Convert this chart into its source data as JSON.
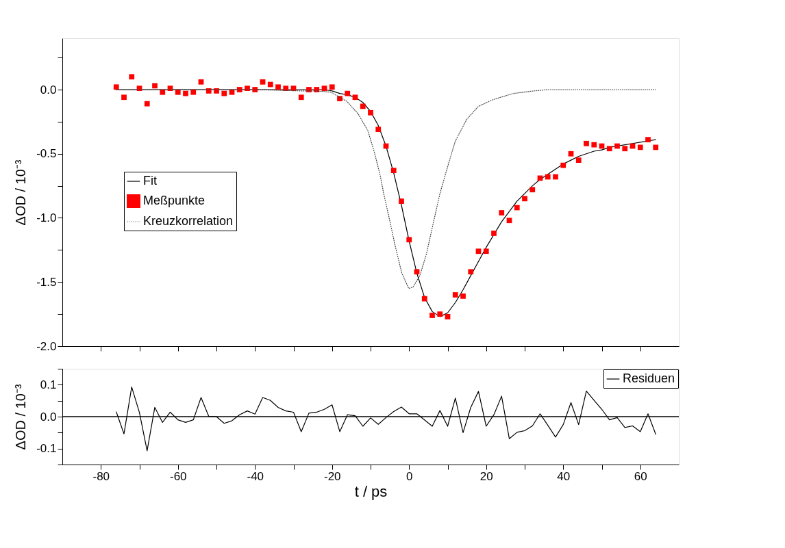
{
  "chart_data": [
    {
      "type": "scatter",
      "ylabel": "ΔOD / 10⁻³",
      "xlim": [
        -90,
        70
      ],
      "ylim": [
        -2.0,
        0.4
      ],
      "grid": false,
      "legend": "left",
      "tick_labels": "y",
      "xticks": [
        {
          "value": -80,
          "label": null
        },
        {
          "value": -70,
          "label": null
        },
        {
          "value": -60,
          "label": null
        },
        {
          "value": -50,
          "label": null
        },
        {
          "value": -40,
          "label": null
        },
        {
          "value": -30,
          "label": null
        },
        {
          "value": -20,
          "label": null
        },
        {
          "value": -10,
          "label": null
        },
        {
          "value": 0,
          "label": null
        },
        {
          "value": 10,
          "label": null
        },
        {
          "value": 20,
          "label": null
        },
        {
          "value": 30,
          "label": null
        },
        {
          "value": 40,
          "label": null
        },
        {
          "value": 50,
          "label": null
        },
        {
          "value": 60,
          "label": null
        }
      ],
      "yticks": [
        {
          "value": -2.0,
          "label": "-2.0"
        },
        {
          "value": -1.75,
          "label": null
        },
        {
          "value": -1.5,
          "label": "-1.5"
        },
        {
          "value": -1.25,
          "label": null
        },
        {
          "value": -1.0,
          "label": "-1.0"
        },
        {
          "value": -0.75,
          "label": null
        },
        {
          "value": -0.5,
          "label": "-0.5"
        },
        {
          "value": -0.25,
          "label": null
        },
        {
          "value": 0.0,
          "label": "0.0"
        },
        {
          "value": 0.25,
          "label": null
        }
      ],
      "x": [
        -76,
        -74,
        -72,
        -70,
        -68,
        -66,
        -64,
        -62,
        -60,
        -58,
        -56,
        -54,
        -52,
        -50,
        -48,
        -46,
        -44,
        -42,
        -40,
        -38,
        -36,
        -34,
        -32,
        -30,
        -28,
        -26,
        -24,
        -22,
        -20,
        -18,
        -16,
        -14,
        -12,
        -10,
        -8,
        -6,
        -4,
        -2,
        0,
        2,
        4,
        6,
        8,
        10,
        12,
        14,
        16,
        18,
        20,
        22,
        24,
        26,
        28,
        30,
        32,
        34,
        36,
        38,
        40,
        42,
        44,
        46,
        48,
        50,
        52,
        54,
        56,
        58,
        60,
        62,
        64
      ],
      "series": [
        {
          "name": "Fit",
          "type": "line",
          "color": "#000000",
          "line_style": "solid",
          "marker": "none",
          "values": [
            0,
            0,
            0,
            0,
            0,
            0,
            0,
            0,
            0,
            0,
            0,
            0,
            0,
            0,
            0,
            0,
            0,
            0,
            0,
            0,
            0,
            0,
            0,
            0,
            0,
            0,
            0,
            0,
            -0.01,
            -0.03,
            -0.04,
            -0.06,
            -0.1,
            -0.17,
            -0.28,
            -0.44,
            -0.65,
            -0.9,
            -1.18,
            -1.43,
            -1.62,
            -1.73,
            -1.77,
            -1.74,
            -1.66,
            -1.56,
            -1.45,
            -1.34,
            -1.23,
            -1.13,
            -1.03,
            -0.95,
            -0.87,
            -0.81,
            -0.75,
            -0.7,
            -0.66,
            -0.62,
            -0.58,
            -0.55,
            -0.52,
            -0.5,
            -0.48,
            -0.47,
            -0.45,
            -0.44,
            -0.43,
            -0.42,
            -0.41,
            -0.4,
            -0.39
          ]
        },
        {
          "name": "Meßpunkte",
          "color": "#ff0000",
          "marker": "square",
          "values": [
            0.02,
            -0.06,
            0.1,
            0.01,
            -0.11,
            0.03,
            -0.02,
            0.01,
            -0.02,
            -0.03,
            -0.02,
            0.06,
            -0.01,
            -0.01,
            -0.03,
            -0.02,
            0.0,
            0.01,
            0.0,
            0.06,
            0.04,
            0.02,
            0.01,
            0.01,
            -0.06,
            0.0,
            0.0,
            0.01,
            0.02,
            -0.07,
            -0.03,
            -0.06,
            -0.13,
            -0.18,
            -0.31,
            -0.44,
            -0.63,
            -0.87,
            -1.17,
            -1.42,
            -1.63,
            -1.76,
            -1.75,
            -1.77,
            -1.6,
            -1.61,
            -1.42,
            -1.26,
            -1.26,
            -1.12,
            -0.96,
            -1.02,
            -0.92,
            -0.85,
            -0.78,
            -0.69,
            -0.68,
            -0.68,
            -0.59,
            -0.5,
            -0.55,
            -0.42,
            -0.43,
            -0.44,
            -0.46,
            -0.44,
            -0.46,
            -0.44,
            -0.45,
            -0.39,
            -0.45
          ]
        },
        {
          "name": "Kreuzkorrelation",
          "type": "line",
          "color": "#444444",
          "line_style": "dotted",
          "marker": "none",
          "x": [
            -76,
            -40,
            -28,
            -24,
            -20.3,
            -16.2,
            -13.2,
            -10.7,
            -9.0,
            -7.5,
            -6.6,
            -5.4,
            -3.6,
            -1.9,
            -0.1,
            1.0,
            2.8,
            4.5,
            6.2,
            8.0,
            10.2,
            12.0,
            15.0,
            18.0,
            21.6,
            27.0,
            32.4,
            36.0,
            64
          ],
          "values": [
            0,
            0,
            -0.01,
            -0.01,
            -0.02,
            -0.09,
            -0.19,
            -0.32,
            -0.49,
            -0.67,
            -0.81,
            -0.97,
            -1.22,
            -1.43,
            -1.55,
            -1.54,
            -1.45,
            -1.28,
            -1.05,
            -0.81,
            -0.58,
            -0.4,
            -0.23,
            -0.13,
            -0.08,
            -0.03,
            -0.01,
            0,
            0
          ]
        }
      ]
    },
    {
      "type": "line",
      "xlabel": "t / ps",
      "ylabel": "ΔOD / 10⁻³",
      "xlim": [
        -90,
        70
      ],
      "ylim": [
        -0.15,
        0.15
      ],
      "grid": false,
      "legend": "top right",
      "xticks": [
        {
          "value": -80,
          "label": "-80"
        },
        {
          "value": -70,
          "label": null
        },
        {
          "value": -60,
          "label": "-60"
        },
        {
          "value": -50,
          "label": null
        },
        {
          "value": -40,
          "label": "-40"
        },
        {
          "value": -30,
          "label": null
        },
        {
          "value": -20,
          "label": "-20"
        },
        {
          "value": -10,
          "label": null
        },
        {
          "value": 0,
          "label": "0"
        },
        {
          "value": 10,
          "label": null
        },
        {
          "value": 20,
          "label": "20"
        },
        {
          "value": 30,
          "label": null
        },
        {
          "value": 40,
          "label": "40"
        },
        {
          "value": 50,
          "label": null
        },
        {
          "value": 60,
          "label": "60"
        }
      ],
      "yticks": [
        {
          "value": -0.15,
          "label": null
        },
        {
          "value": -0.1,
          "label": "-0.1"
        },
        {
          "value": -0.05,
          "label": null
        },
        {
          "value": 0.0,
          "label": "0.0"
        },
        {
          "value": 0.05,
          "label": null
        },
        {
          "value": 0.1,
          "label": "0.1"
        },
        {
          "value": 0.15,
          "label": null
        }
      ],
      "ref_lines": [
        {
          "axis": "y",
          "value": 0,
          "color": "#000000",
          "line_style": "solid"
        }
      ],
      "x": [
        -76,
        -74,
        -72,
        -70,
        -68,
        -66,
        -64,
        -62,
        -60,
        -58,
        -56,
        -54,
        -52,
        -50,
        -48,
        -46,
        -44,
        -42,
        -40,
        -38,
        -36,
        -34,
        -32,
        -30,
        -28,
        -26,
        -24,
        -22,
        -20,
        -18,
        -16,
        -14,
        -12,
        -10,
        -8,
        -6,
        -4,
        -2,
        0,
        2,
        4,
        6,
        8,
        10,
        12,
        14,
        16,
        18,
        20,
        22,
        24,
        26,
        28,
        30,
        32,
        34,
        36,
        38,
        40,
        42,
        44,
        46,
        48,
        50,
        52,
        54,
        56,
        58,
        60,
        62,
        64
      ],
      "series": [
        {
          "name": "Residuen",
          "color": "#000000",
          "line_style": "solid",
          "marker": "none",
          "values": [
            0.015,
            -0.054,
            0.093,
            0.013,
            -0.107,
            0.029,
            -0.018,
            0.014,
            -0.01,
            -0.018,
            -0.01,
            0.06,
            0.001,
            0.0,
            -0.021,
            -0.013,
            0.006,
            0.018,
            0.008,
            0.06,
            0.051,
            0.029,
            0.018,
            0.014,
            -0.047,
            0.011,
            0.014,
            0.023,
            0.037,
            -0.047,
            0.006,
            0.003,
            -0.03,
            -0.004,
            -0.024,
            -0.003,
            0.016,
            0.03,
            0.009,
            0.009,
            -0.01,
            -0.03,
            0.019,
            -0.03,
            0.058,
            -0.05,
            0.029,
            0.079,
            -0.03,
            0.006,
            0.064,
            -0.069,
            -0.049,
            -0.044,
            -0.029,
            0.009,
            -0.027,
            -0.064,
            -0.025,
            0.044,
            -0.025,
            0.08,
            0.051,
            0.023,
            -0.01,
            -0.003,
            -0.034,
            -0.029,
            -0.047,
            0.009,
            -0.055
          ]
        }
      ]
    }
  ]
}
